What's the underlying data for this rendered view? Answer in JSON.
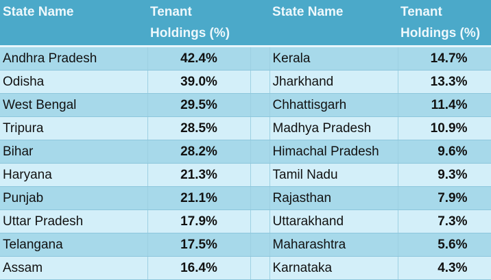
{
  "headers": {
    "state": "State Name",
    "tenant": "Tenant Holdings (%)",
    "state2": "State Name",
    "tenant2": "Tenant Holdings (%)"
  },
  "rows": [
    {
      "s1": "Andhra Pradesh",
      "v1": "42.4%",
      "s2": "Kerala",
      "v2": "14.7%"
    },
    {
      "s1": "Odisha",
      "v1": "39.0%",
      "s2": "Jharkhand",
      "v2": "13.3%"
    },
    {
      "s1": "West Bengal",
      "v1": "29.5%",
      "s2": "Chhattisgarh",
      "v2": "11.4%"
    },
    {
      "s1": "Tripura",
      "v1": "28.5%",
      "s2": "Madhya Pradesh",
      "v2": "10.9%"
    },
    {
      "s1": "Bihar",
      "v1": "28.2%",
      "s2": "Himachal Pradesh",
      "v2": "9.6%"
    },
    {
      "s1": "Haryana",
      "v1": "21.3%",
      "s2": "Tamil Nadu",
      "v2": "9.3%"
    },
    {
      "s1": "Punjab",
      "v1": "21.1%",
      "s2": "Rajasthan",
      "v2": "7.9%"
    },
    {
      "s1": "Uttar Pradesh",
      "v1": "17.9%",
      "s2": "Uttarakhand",
      "v2": "7.3%"
    },
    {
      "s1": "Telangana",
      "v1": "17.5%",
      "s2": "Maharashtra",
      "v2": "5.6%"
    },
    {
      "s1": "Assam",
      "v1": "16.4%",
      "s2": "Karnataka",
      "v2": "4.3%"
    }
  ]
}
